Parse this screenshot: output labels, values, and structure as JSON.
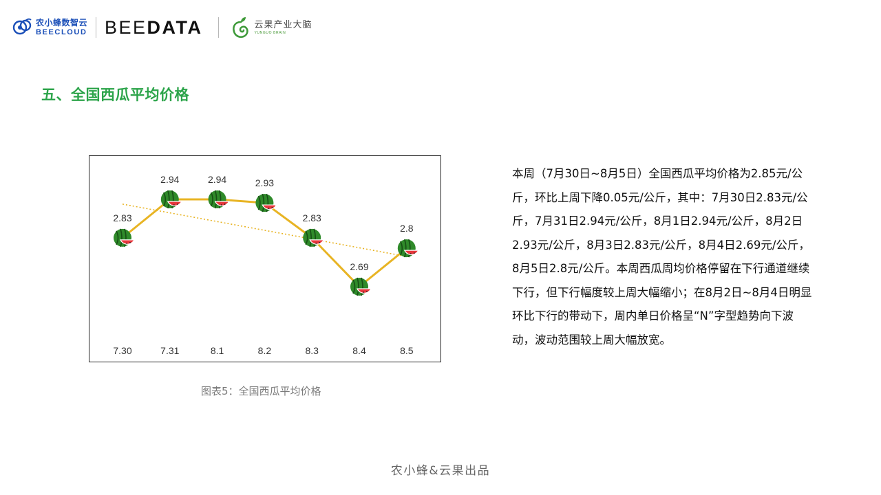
{
  "header": {
    "bee_cn": "农小蜂数智云",
    "bee_en": "BEECLOUD",
    "beedata_part1": "BEE",
    "beedata_part2": "DATA",
    "yunguo_cn": "云果产业大脑",
    "yunguo_en": "YUNGUO BRAIN"
  },
  "section_title": "五、全国西瓜平均价格",
  "chart_caption": "图表5：全国西瓜平均价格",
  "chart_data": {
    "type": "line",
    "categories": [
      "7.30",
      "7.31",
      "8.1",
      "8.2",
      "8.3",
      "8.4",
      "8.5"
    ],
    "series": [
      {
        "values": [
          2.83,
          2.94,
          2.94,
          2.93,
          2.83,
          2.69,
          2.8
        ]
      }
    ],
    "data_labels": [
      "2.83",
      "2.94",
      "2.94",
      "2.93",
      "2.83",
      "2.69",
      "2.8"
    ],
    "trendline": "linear",
    "marker": "watermelon-icon",
    "grid": false,
    "colors": {
      "line": "#e8b424",
      "trend": "#e8b424",
      "melon_rind": "#2f8a2a",
      "melon_flesh": "#e8373c"
    }
  },
  "description": "本周（7月30日~8月5日）全国西瓜平均价格为2.85元/公斤，环比上周下降0.05元/公斤，其中：7月30日2.83元/公斤，7月31日2.94元/公斤，8月1日2.94元/公斤，8月2日2.93元/公斤，8月3日2.83元/公斤，8月4日2.69元/公斤，8月5日2.8元/公斤。本周西瓜周均价格停留在下行通道继续下行，但下行幅度较上周大幅缩小；在8月2日~8月4日明显环比下行的带动下，周内单日价格呈“N”字型趋势向下波动，波动范围较上周大幅放宽。",
  "footer": "农小蜂&云果出品"
}
